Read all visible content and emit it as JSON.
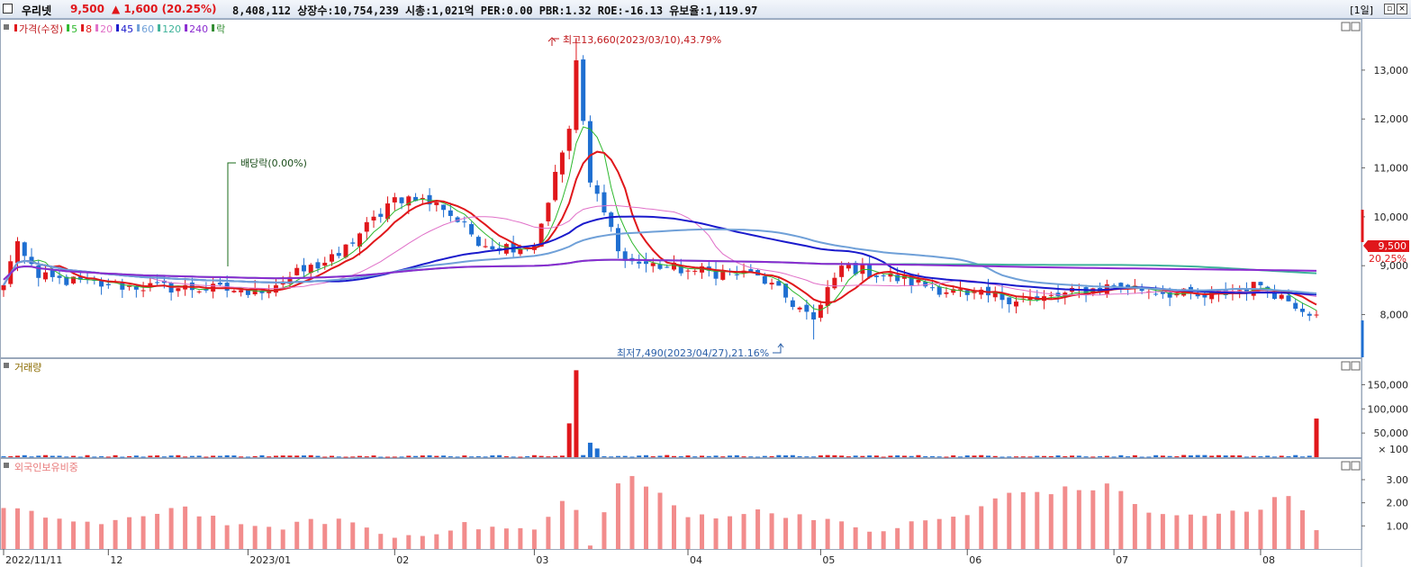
{
  "header": {
    "stock_name": "우리넷",
    "price": "9,500",
    "change": "▲ 1,600",
    "change_pct": "(20.25%)",
    "info": "8,408,112  상장수:10,754,239 시총:1,021억 PER:0.00 PBR:1.32 ROE:-16.13 유보율:1,119.97",
    "period": "[1일]",
    "colors": {
      "up": "#e0171b",
      "down": "#1f6fd1"
    }
  },
  "price_panel": {
    "legend": [
      {
        "label": "가격(수정)",
        "color": "#e0171b"
      },
      {
        "label": "5",
        "color": "#2eb82e"
      },
      {
        "label": "8",
        "color": "#e0171b"
      },
      {
        "label": "20",
        "color": "#e070c8"
      },
      {
        "label": "45",
        "color": "#1a1acc"
      },
      {
        "label": "60",
        "color": "#6fa0d8"
      },
      {
        "label": "120",
        "color": "#3fb39a"
      },
      {
        "label": "240",
        "color": "#8a2bd0"
      },
      {
        "label": "락",
        "color": "#2e8b2e"
      }
    ],
    "high_annotation": "최고13,660(2023/03/10),43.79%",
    "low_annotation": "최저7,490(2023/04/27),21.16%",
    "dividend_annotation": "배당락(0.00%)",
    "current_price_tag": "9,500",
    "current_pct_tag": "20.25%"
  },
  "volume_panel": {
    "legend": "거래량",
    "unit_label": "× 100"
  },
  "foreign_panel": {
    "legend": "외국인보유비중"
  },
  "x_axis_labels": [
    "2022/11/11",
    "12",
    "2023/01",
    "02",
    "03",
    "04",
    "05",
    "06",
    "07",
    "08"
  ],
  "chart_data": [
    {
      "type": "candlestick",
      "title": "가격(수정)",
      "y_ticks": [
        8000,
        9000,
        10000,
        11000,
        12000,
        13000
      ],
      "ylim": [
        7200,
        13900
      ],
      "candles_count": 189,
      "anchors": [
        {
          "date": "2022/11/11",
          "close": 8600
        },
        {
          "date": "2022/11/14",
          "close": 9500
        },
        {
          "date": "2022/11/18",
          "close": 8750
        },
        {
          "date": "2022/12",
          "close": 8600
        },
        {
          "date": "2022/12/28",
          "close": 8500
        },
        {
          "date": "2023/01",
          "close": 8400
        },
        {
          "date": "2023/01/20",
          "close": 9200
        },
        {
          "date": "2023/02",
          "close": 10400
        },
        {
          "date": "2023/02/10",
          "close": 10300
        },
        {
          "date": "2023/02/20",
          "close": 9400
        },
        {
          "date": "2023/03",
          "close": 9400
        },
        {
          "date": "2023/03/08",
          "close": 11800
        },
        {
          "date": "2023/03/10",
          "close": 13200,
          "high": 13660
        },
        {
          "date": "2023/03/13",
          "close": 10700
        },
        {
          "date": "2023/03/20",
          "close": 9100
        },
        {
          "date": "2023/04",
          "close": 8900
        },
        {
          "date": "2023/04/15",
          "close": 8800
        },
        {
          "date": "2023/04/27",
          "close": 7900,
          "low": 7490
        },
        {
          "date": "2023/05",
          "close": 8200
        },
        {
          "date": "2023/05/05",
          "close": 9000
        },
        {
          "date": "2023/06",
          "close": 8400
        },
        {
          "date": "2023/06/15",
          "close": 8300
        },
        {
          "date": "2023/07",
          "close": 8600
        },
        {
          "date": "2023/07/20",
          "close": 8350
        },
        {
          "date": "2023/08",
          "close": 8600
        },
        {
          "date": "2023/08/20",
          "close": 8000
        },
        {
          "date": "2023/08/28",
          "close": 7900,
          "low": 7700
        },
        {
          "date": "2023/08/29",
          "close": 9500
        }
      ],
      "moving_averages": [
        "5",
        "8",
        "20",
        "45",
        "60",
        "120",
        "240"
      ]
    },
    {
      "type": "bar",
      "title": "거래량",
      "y_ticks": [
        "50,000",
        "100,000",
        "150,000"
      ],
      "unit": "× 100",
      "peaks": [
        {
          "date": "2023/03/08",
          "value": 70000
        },
        {
          "date": "2023/03/10",
          "value": 180000
        },
        {
          "date": "2023/03/13",
          "value": 30000
        },
        {
          "date": "2023/03/14",
          "value": 18000
        },
        {
          "date": "2023/08/29",
          "value": 80000
        }
      ],
      "typical_value": 3000
    },
    {
      "type": "bar",
      "title": "외국인보유비중",
      "y_ticks": [
        "1.00",
        "2.00",
        "3.00"
      ],
      "ylim": [
        0,
        3.7
      ],
      "anchors": [
        {
          "date": "2022/11/11",
          "value": 1.7
        },
        {
          "date": "2022/12",
          "value": 1.0
        },
        {
          "date": "2022/12/15",
          "value": 1.9
        },
        {
          "date": "2023/01",
          "value": 0.8
        },
        {
          "date": "2023/01/20",
          "value": 1.3
        },
        {
          "date": "2023/02",
          "value": 0.5
        },
        {
          "date": "2023/02/15",
          "value": 1.0
        },
        {
          "date": "2023/03",
          "value": 0.8
        },
        {
          "date": "2023/03/08",
          "value": 2.3
        },
        {
          "date": "2023/03/13",
          "value": 0.3
        },
        {
          "date": "2023/03/20",
          "value": 3.4
        },
        {
          "date": "2023/04",
          "value": 1.4
        },
        {
          "date": "2023/04/15",
          "value": 1.6
        },
        {
          "date": "2023/05",
          "value": 1.4
        },
        {
          "date": "2023/05/10",
          "value": 0.7
        },
        {
          "date": "2023/06",
          "value": 1.5
        },
        {
          "date": "2023/06/10",
          "value": 2.4
        },
        {
          "date": "2023/07",
          "value": 2.7
        },
        {
          "date": "2023/07/10",
          "value": 1.4
        },
        {
          "date": "2023/08",
          "value": 1.6
        },
        {
          "date": "2023/08/05",
          "value": 2.6
        },
        {
          "date": "2023/08/15",
          "value": 0.9
        },
        {
          "date": "2023/08/29",
          "value": 0.3
        }
      ]
    }
  ]
}
